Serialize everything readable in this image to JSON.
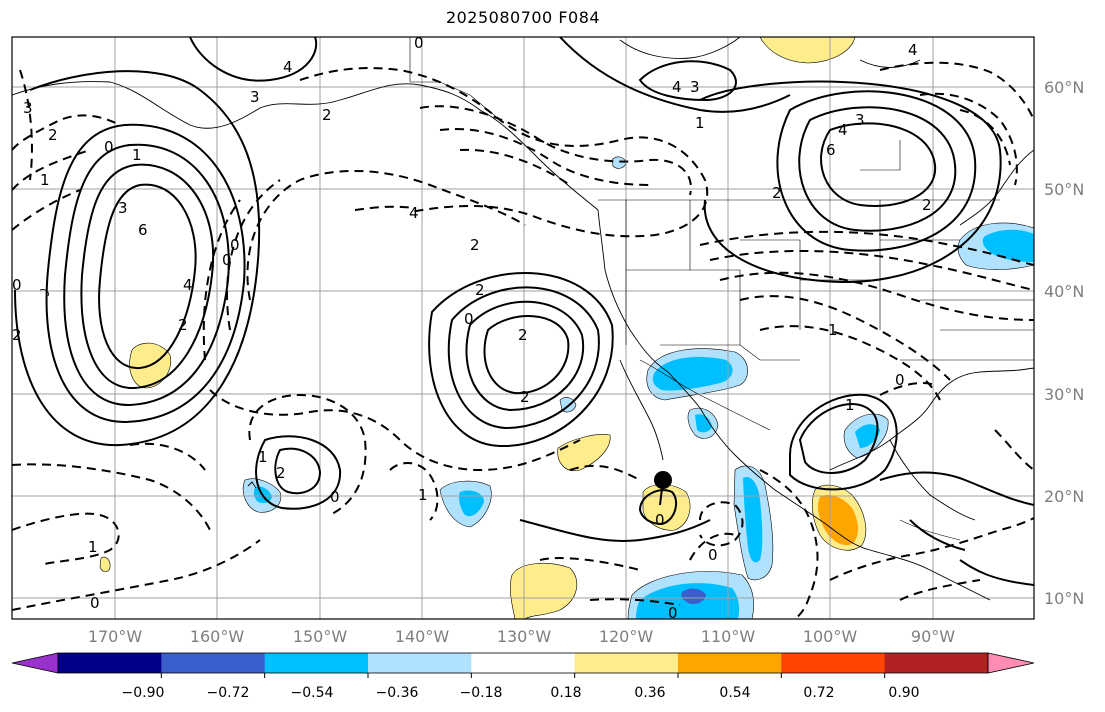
{
  "title": "2025080700 F084",
  "map": {
    "projection": "PlateCarree",
    "extent": {
      "lon_min": -180,
      "lon_max": -80,
      "lat_min": 8,
      "lat_max": 65
    },
    "gridlines": true,
    "lon_labels": [
      "170°W",
      "160°W",
      "150°W",
      "140°W",
      "130°W",
      "120°W",
      "110°W",
      "100°W",
      "90°W"
    ],
    "lat_labels": [
      "60°N",
      "50°N",
      "40°N",
      "30°N",
      "20°N",
      "10°N"
    ],
    "marker": {
      "lon": -115.5,
      "lat": 21.5,
      "color": "#000000"
    }
  },
  "colorbar": {
    "orientation": "horizontal",
    "extend": "both",
    "colors": [
      "#9932cc",
      "#00008b",
      "#3a5fcd",
      "#00bfff",
      "#b0e2ff",
      "#ffffff",
      "#ffec8b",
      "#ffa500",
      "#ff4500",
      "#b22222",
      "#ff8cb4"
    ],
    "tick_labels": [
      "−0.90",
      "−0.72",
      "−0.54",
      "−0.36",
      "−0.18",
      "0.18",
      "0.36",
      "0.54",
      "0.72",
      "0.90"
    ]
  },
  "contour_labels": [
    "0",
    "4",
    "4",
    "3",
    "2",
    "3",
    "2",
    "1",
    "0",
    "1",
    "0",
    "4",
    "3",
    "2",
    "6",
    "4",
    "2",
    "0",
    "0",
    "4",
    "3",
    "2",
    "0",
    "2",
    "2",
    "2",
    "2",
    "1",
    "1",
    "0",
    "1",
    "0",
    "1",
    "0",
    "2",
    "1",
    "0",
    "0",
    "0",
    "1",
    "4",
    "3",
    "2",
    "6"
  ]
}
